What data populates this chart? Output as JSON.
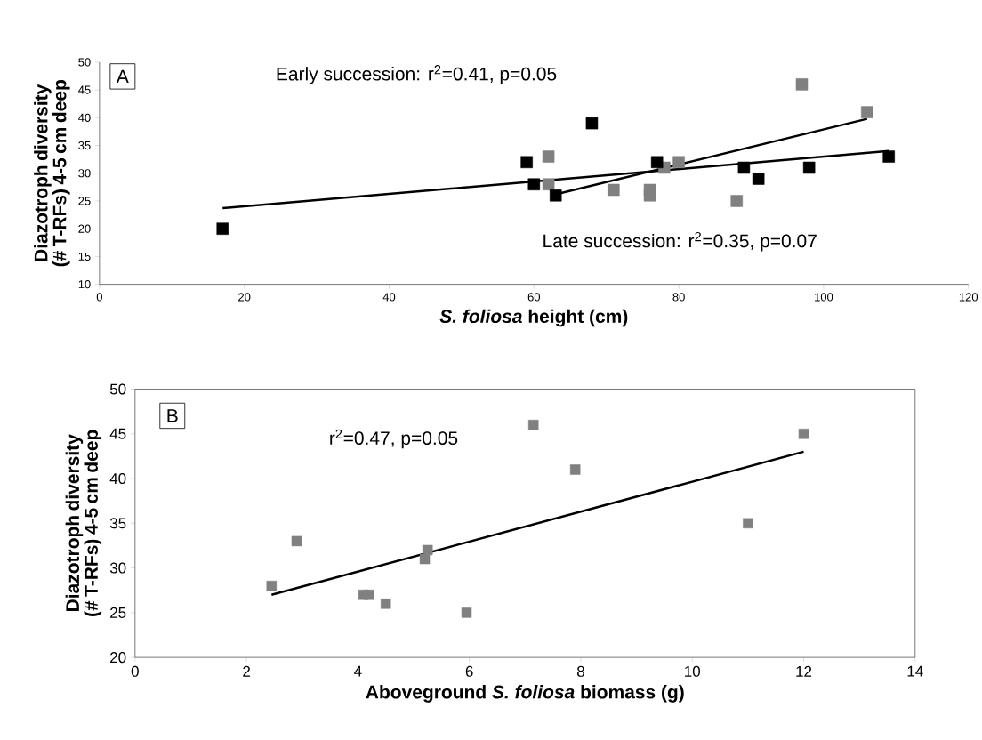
{
  "chart_data": [
    {
      "type": "scatter",
      "xlabel": "*S. foliosa* height (cm)",
      "ylabel": "Diazotroph diversity (# T-RFs) 4-5 cm deep",
      "marker": "square",
      "annotations": [
        "A",
        "Early succession: r$^{2}$=0.41, p=0.05",
        "Late succession: r$^{2}$=0.35, p=0.07"
      ],
      "xlim": [
        0,
        120
      ],
      "xticks": [
        0,
        20,
        40,
        60,
        80,
        100,
        120
      ],
      "ylim": [
        10,
        50
      ],
      "yticks": [
        10,
        15,
        20,
        25,
        30,
        35,
        40,
        45,
        50
      ],
      "series": [
        {
          "color": "#808080",
          "x": [
            62,
            62,
            71,
            76,
            76,
            78,
            80,
            88,
            97,
            106
          ],
          "values": [
            33,
            28,
            27,
            27,
            26,
            31,
            32,
            25,
            46,
            41
          ]
        },
        {
          "color": "#000000",
          "x": [
            17,
            59,
            60,
            63,
            68,
            77,
            89,
            91,
            98,
            109
          ],
          "values": [
            20,
            32,
            28,
            26,
            39,
            32,
            31,
            29,
            31,
            33
          ]
        },
        {
          "type": "line",
          "color": "#000000",
          "marker": "none",
          "x": [
            63,
            106
          ],
          "values": [
            26.2,
            39.8
          ]
        },
        {
          "type": "line",
          "color": "#000000",
          "marker": "none",
          "x": [
            17,
            109
          ],
          "values": [
            23.7,
            34
          ]
        }
      ]
    },
    {
      "type": "scatter",
      "xlabel": "Aboveground *S. foliosa* biomass (g)",
      "ylabel": "Diazotroph diversity (# T-RFs) 4-5 cm deep",
      "marker": "square",
      "annotations": [
        "B",
        "r$^{2}$=0.47, p=0.05"
      ],
      "xlim": [
        0,
        14
      ],
      "xticks": [
        0,
        2,
        4,
        6,
        8,
        10,
        12,
        14
      ],
      "ylim": [
        20,
        50
      ],
      "yticks": [
        20,
        25,
        30,
        35,
        40,
        45,
        50
      ],
      "series": [
        {
          "color": "#808080",
          "x": [
            2.45,
            2.9,
            4.1,
            4.2,
            4.5,
            5.2,
            5.25,
            5.95,
            7.15,
            7.9,
            11,
            12
          ],
          "values": [
            28,
            33,
            27,
            27,
            26,
            31,
            32,
            25,
            46,
            41,
            35,
            45
          ]
        },
        {
          "type": "line",
          "color": "#000000",
          "marker": "none",
          "x": [
            2.45,
            12
          ],
          "values": [
            27,
            43
          ]
        }
      ]
    }
  ]
}
